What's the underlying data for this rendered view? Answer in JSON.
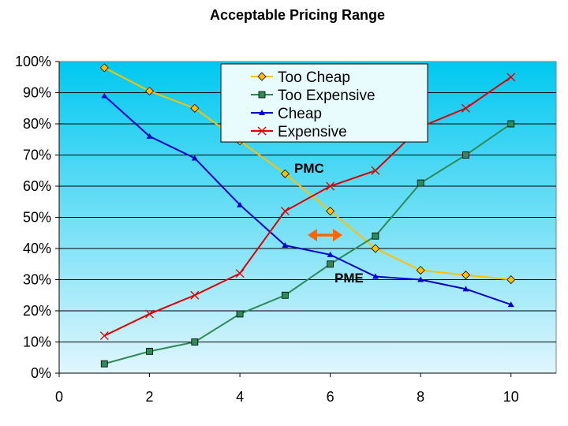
{
  "chart_data": {
    "type": "line",
    "title": "Acceptable Pricing Range",
    "xlabel": "",
    "ylabel": "",
    "xlim": [
      0,
      11
    ],
    "ylim": [
      0,
      100
    ],
    "x_ticks": [
      "0",
      "2",
      "4",
      "6",
      "8",
      "10"
    ],
    "y_ticks": [
      "0%",
      "10%",
      "20%",
      "30%",
      "40%",
      "50%",
      "60%",
      "70%",
      "80%",
      "90%",
      "100%"
    ],
    "x": [
      1,
      2,
      3,
      4,
      5,
      6,
      7,
      8,
      9,
      10
    ],
    "series": [
      {
        "name": "Too Cheap",
        "color": "#FFC000",
        "marker": "diamond",
        "values": [
          98,
          90.5,
          85,
          74.5,
          64,
          52,
          40,
          33,
          31.5,
          30
        ]
      },
      {
        "name": "Too Expensive",
        "color": "#2E8B57",
        "marker": "square",
        "values": [
          3,
          7,
          10,
          19,
          25,
          35,
          44,
          61,
          70,
          80
        ]
      },
      {
        "name": "Cheap",
        "color": "#0000CC",
        "marker": "triangle",
        "values": [
          89,
          76,
          69,
          54,
          41,
          38,
          31,
          30,
          27,
          22
        ]
      },
      {
        "name": "Expensive",
        "color": "#DD0000",
        "marker": "x",
        "values": [
          12,
          19,
          25,
          32,
          52,
          60,
          65,
          79,
          85,
          95
        ]
      }
    ],
    "annotations": [
      {
        "text": "PMC"
      },
      {
        "text": "PME"
      }
    ],
    "arrow_color": "#FF6600",
    "plot_gradient": {
      "top": "#00C8F0",
      "bottom": "#E0F6FC"
    },
    "legend_background": "#E8FBFD",
    "grid": true,
    "legend_position": "top-center"
  }
}
